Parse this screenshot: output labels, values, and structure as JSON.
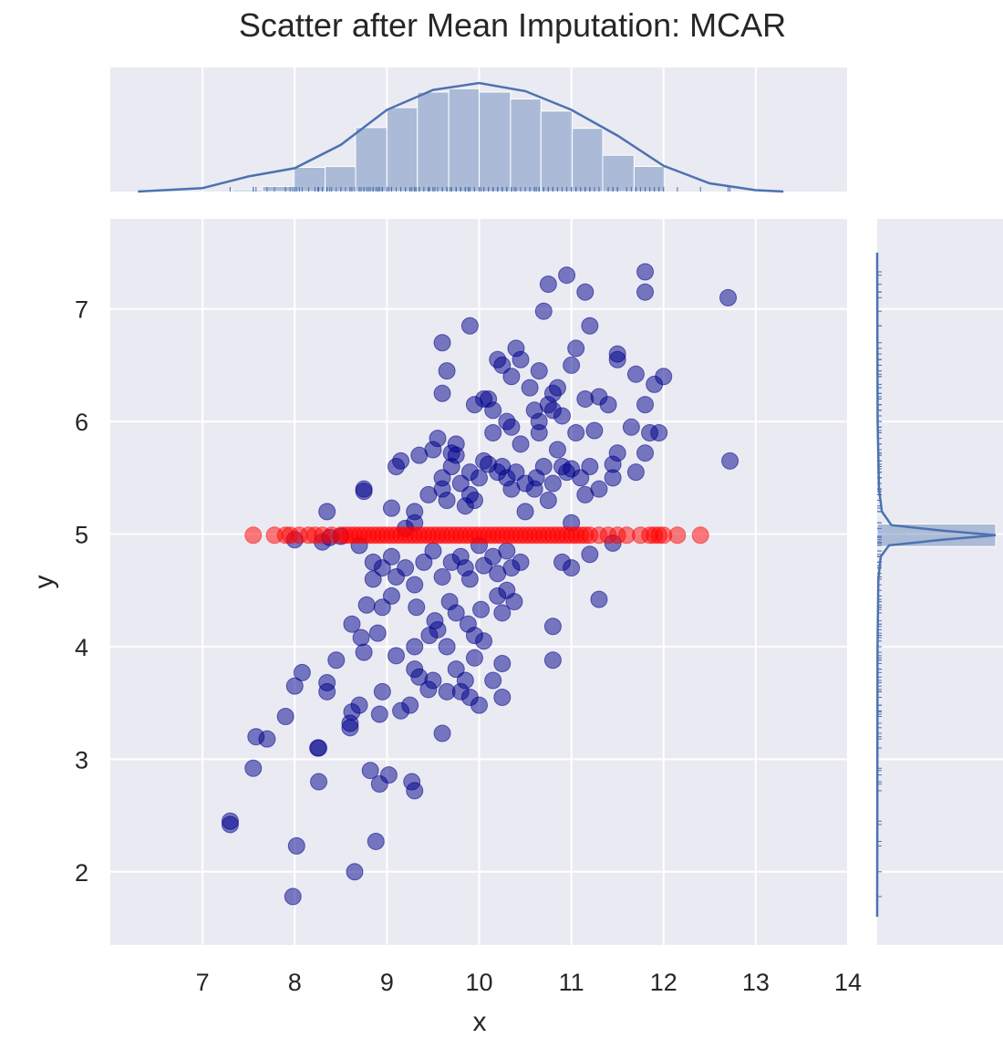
{
  "chart_data": {
    "type": "scatter",
    "title": "Scatter after Mean Imputation: MCAR",
    "xlabel": "x",
    "ylabel": "y",
    "xlim": [
      6.0,
      14.0
    ],
    "ylim": [
      1.35,
      7.8
    ],
    "xticks": [
      "7",
      "8",
      "9",
      "10",
      "11",
      "12",
      "13",
      "14"
    ],
    "yticks": [
      "2",
      "3",
      "4",
      "5",
      "6",
      "7"
    ],
    "grid": true,
    "colors": {
      "background": "#eaeaf2",
      "grid": "#ffffff",
      "observed": "#00008b",
      "imputed": "#ff0000",
      "marginal": "#4c72b0"
    },
    "series": [
      {
        "role": "observed",
        "points": [
          [
            7.3,
            2.42
          ],
          [
            7.3,
            2.45
          ],
          [
            7.55,
            2.92
          ],
          [
            7.58,
            3.2
          ],
          [
            7.7,
            3.18
          ],
          [
            7.9,
            3.38
          ],
          [
            8.0,
            3.65
          ],
          [
            8.02,
            2.23
          ],
          [
            7.98,
            1.78
          ],
          [
            8.08,
            3.77
          ],
          [
            8.25,
            3.1
          ],
          [
            8.26,
            3.1
          ],
          [
            8.26,
            2.8
          ],
          [
            8.35,
            3.68
          ],
          [
            8.35,
            3.6
          ],
          [
            8.45,
            3.88
          ],
          [
            8.6,
            3.28
          ],
          [
            8.6,
            3.32
          ],
          [
            8.62,
            3.42
          ],
          [
            8.62,
            4.2
          ],
          [
            8.65,
            2.0
          ],
          [
            8.7,
            3.48
          ],
          [
            8.72,
            4.08
          ],
          [
            8.75,
            3.95
          ],
          [
            8.78,
            4.37
          ],
          [
            8.82,
            2.9
          ],
          [
            8.88,
            2.27
          ],
          [
            8.92,
            2.78
          ],
          [
            8.92,
            3.4
          ],
          [
            8.95,
            4.35
          ],
          [
            8.9,
            4.12
          ],
          [
            8.95,
            3.6
          ],
          [
            9.02,
            2.86
          ],
          [
            9.05,
            4.45
          ],
          [
            9.1,
            3.92
          ],
          [
            9.15,
            3.43
          ],
          [
            9.25,
            3.48
          ],
          [
            9.27,
            2.8
          ],
          [
            9.3,
            2.72
          ],
          [
            9.3,
            3.8
          ],
          [
            9.3,
            4.0
          ],
          [
            9.32,
            4.35
          ],
          [
            9.35,
            3.73
          ],
          [
            9.45,
            3.62
          ],
          [
            9.46,
            4.1
          ],
          [
            9.5,
            3.7
          ],
          [
            9.52,
            4.23
          ],
          [
            9.55,
            4.15
          ],
          [
            9.6,
            3.23
          ],
          [
            9.65,
            3.6
          ],
          [
            9.65,
            4.0
          ],
          [
            9.68,
            4.4
          ],
          [
            9.75,
            3.8
          ],
          [
            9.75,
            4.3
          ],
          [
            9.8,
            3.6
          ],
          [
            9.85,
            3.7
          ],
          [
            9.88,
            4.2
          ],
          [
            9.9,
            3.55
          ],
          [
            9.95,
            4.1
          ],
          [
            9.95,
            3.9
          ],
          [
            10.0,
            3.48
          ],
          [
            10.02,
            4.33
          ],
          [
            10.05,
            4.05
          ],
          [
            10.15,
            3.7
          ],
          [
            10.2,
            4.45
          ],
          [
            10.25,
            3.85
          ],
          [
            10.25,
            4.3
          ],
          [
            10.25,
            3.55
          ],
          [
            10.3,
            4.5
          ],
          [
            10.38,
            4.4
          ],
          [
            10.8,
            4.18
          ],
          [
            10.8,
            3.88
          ],
          [
            11.3,
            4.42
          ],
          [
            8.0,
            4.95
          ],
          [
            8.3,
            4.93
          ],
          [
            8.38,
            4.97
          ],
          [
            8.5,
            4.98
          ],
          [
            8.7,
            4.9
          ],
          [
            8.85,
            4.75
          ],
          [
            8.85,
            4.6
          ],
          [
            8.95,
            4.7
          ],
          [
            9.05,
            4.8
          ],
          [
            9.1,
            4.62
          ],
          [
            9.2,
            4.7
          ],
          [
            9.3,
            4.55
          ],
          [
            9.4,
            4.75
          ],
          [
            9.5,
            4.85
          ],
          [
            9.6,
            4.62
          ],
          [
            9.7,
            4.75
          ],
          [
            9.8,
            4.8
          ],
          [
            9.85,
            4.7
          ],
          [
            9.9,
            4.6
          ],
          [
            10.0,
            4.9
          ],
          [
            10.05,
            4.72
          ],
          [
            10.15,
            4.8
          ],
          [
            10.2,
            4.65
          ],
          [
            10.3,
            4.85
          ],
          [
            10.35,
            4.7
          ],
          [
            10.45,
            4.75
          ],
          [
            10.9,
            4.75
          ],
          [
            11.0,
            4.7
          ],
          [
            11.2,
            4.82
          ],
          [
            11.45,
            4.92
          ],
          [
            8.35,
            5.2
          ],
          [
            8.75,
            5.38
          ],
          [
            8.75,
            5.4
          ],
          [
            9.05,
            5.23
          ],
          [
            9.1,
            5.6
          ],
          [
            9.15,
            5.65
          ],
          [
            9.2,
            5.05
          ],
          [
            9.3,
            5.2
          ],
          [
            9.3,
            5.1
          ],
          [
            9.35,
            5.7
          ],
          [
            9.45,
            5.35
          ],
          [
            9.5,
            5.75
          ],
          [
            9.55,
            5.85
          ],
          [
            9.6,
            5.5
          ],
          [
            9.6,
            5.4
          ],
          [
            9.65,
            5.3
          ],
          [
            9.7,
            5.72
          ],
          [
            9.7,
            5.6
          ],
          [
            9.75,
            5.7
          ],
          [
            9.75,
            5.8
          ],
          [
            9.8,
            5.45
          ],
          [
            9.85,
            5.25
          ],
          [
            9.9,
            5.55
          ],
          [
            9.9,
            5.35
          ],
          [
            9.95,
            5.3
          ],
          [
            10.0,
            5.5
          ],
          [
            10.05,
            5.65
          ],
          [
            10.1,
            5.62
          ],
          [
            10.2,
            5.55
          ],
          [
            10.25,
            5.6
          ],
          [
            10.3,
            5.5
          ],
          [
            10.35,
            5.4
          ],
          [
            10.4,
            5.55
          ],
          [
            10.45,
            5.8
          ],
          [
            10.5,
            5.45
          ],
          [
            10.5,
            5.2
          ],
          [
            10.6,
            5.4
          ],
          [
            10.62,
            5.5
          ],
          [
            10.65,
            5.9
          ],
          [
            10.7,
            5.6
          ],
          [
            10.75,
            5.3
          ],
          [
            10.8,
            5.45
          ],
          [
            10.85,
            5.75
          ],
          [
            10.9,
            5.6
          ],
          [
            10.95,
            5.55
          ],
          [
            11.0,
            5.1
          ],
          [
            11.0,
            5.58
          ],
          [
            11.1,
            5.5
          ],
          [
            11.15,
            5.35
          ],
          [
            11.2,
            5.6
          ],
          [
            11.3,
            5.4
          ],
          [
            11.45,
            5.5
          ],
          [
            11.45,
            5.62
          ],
          [
            11.5,
            5.72
          ],
          [
            11.7,
            5.55
          ],
          [
            11.8,
            5.72
          ],
          [
            9.6,
            6.25
          ],
          [
            9.6,
            6.7
          ],
          [
            9.65,
            6.45
          ],
          [
            9.9,
            6.85
          ],
          [
            9.95,
            6.15
          ],
          [
            10.05,
            6.2
          ],
          [
            10.1,
            6.2
          ],
          [
            10.15,
            6.1
          ],
          [
            10.15,
            5.9
          ],
          [
            10.2,
            6.55
          ],
          [
            10.25,
            6.5
          ],
          [
            10.3,
            6.0
          ],
          [
            10.35,
            5.95
          ],
          [
            10.35,
            6.4
          ],
          [
            10.4,
            6.65
          ],
          [
            10.45,
            6.55
          ],
          [
            10.55,
            6.3
          ],
          [
            10.6,
            6.1
          ],
          [
            10.65,
            6.45
          ],
          [
            10.65,
            6.0
          ],
          [
            10.7,
            6.98
          ],
          [
            10.75,
            6.15
          ],
          [
            10.75,
            7.22
          ],
          [
            10.8,
            6.25
          ],
          [
            10.8,
            6.1
          ],
          [
            10.85,
            6.3
          ],
          [
            10.9,
            6.05
          ],
          [
            10.95,
            7.3
          ],
          [
            11.0,
            6.5
          ],
          [
            11.05,
            6.65
          ],
          [
            11.05,
            5.9
          ],
          [
            11.15,
            6.2
          ],
          [
            11.15,
            7.15
          ],
          [
            11.2,
            6.85
          ],
          [
            11.25,
            5.92
          ],
          [
            11.3,
            6.22
          ],
          [
            11.4,
            6.15
          ],
          [
            11.5,
            6.55
          ],
          [
            11.5,
            6.6
          ],
          [
            11.65,
            5.95
          ],
          [
            11.7,
            6.42
          ],
          [
            11.8,
            6.15
          ],
          [
            11.8,
            7.33
          ],
          [
            11.8,
            7.15
          ],
          [
            11.85,
            5.9
          ],
          [
            11.9,
            6.33
          ],
          [
            11.95,
            5.9
          ],
          [
            12.0,
            6.4
          ],
          [
            12.7,
            7.1
          ],
          [
            12.72,
            5.65
          ]
        ]
      },
      {
        "role": "imputed",
        "y": 4.99,
        "x": [
          7.55,
          7.78,
          7.9,
          7.95,
          8.05,
          8.15,
          8.22,
          8.3,
          8.4,
          8.5,
          8.55,
          8.6,
          8.65,
          8.7,
          8.75,
          8.8,
          8.85,
          8.9,
          8.95,
          9.0,
          9.05,
          9.1,
          9.15,
          9.2,
          9.25,
          9.3,
          9.35,
          9.4,
          9.45,
          9.5,
          9.55,
          9.6,
          9.65,
          9.7,
          9.75,
          9.8,
          9.85,
          9.9,
          9.95,
          10.0,
          10.05,
          10.1,
          10.15,
          10.2,
          10.25,
          10.3,
          10.35,
          10.4,
          10.45,
          10.5,
          10.55,
          10.6,
          10.65,
          10.7,
          10.75,
          10.8,
          10.85,
          10.9,
          10.95,
          11.0,
          11.05,
          11.1,
          11.15,
          11.2,
          11.3,
          11.4,
          11.5,
          11.6,
          11.75,
          11.85,
          11.9,
          11.95,
          12.0,
          12.15,
          12.4
        ]
      }
    ],
    "x_hist": {
      "bin_edges": [
        7.32,
        7.65,
        7.99,
        8.33,
        8.66,
        9.0,
        9.33,
        9.67,
        10.0,
        10.34,
        10.67,
        11.01,
        11.34,
        11.68,
        12.01
      ],
      "heights": [
        0.015,
        0.044,
        0.207,
        0.214,
        0.548,
        0.719,
        0.852,
        0.881,
        0.852,
        0.793,
        0.689,
        0.541,
        0.311,
        0.215
      ],
      "kde_x": [
        6.3,
        7.0,
        7.5,
        8.0,
        8.5,
        9.0,
        9.5,
        10.0,
        10.5,
        11.0,
        11.5,
        12.0,
        12.5,
        13.0,
        13.3
      ],
      "kde_y": [
        0.0,
        0.03,
        0.13,
        0.2,
        0.4,
        0.7,
        0.87,
        0.93,
        0.86,
        0.7,
        0.48,
        0.22,
        0.07,
        0.012,
        0.0
      ]
    },
    "y_hist": {
      "kde_y": [
        1.6,
        4.0,
        4.6,
        4.8,
        4.9,
        4.95,
        4.99,
        5.03,
        5.08,
        5.2,
        5.4,
        6.0,
        7.5
      ],
      "kde_x": [
        0.0,
        0.003,
        0.01,
        0.03,
        0.1,
        0.55,
        1.0,
        0.55,
        0.12,
        0.04,
        0.015,
        0.004,
        0.0
      ],
      "center_bar": {
        "y0": 4.89,
        "y1": 5.09,
        "length": 1.0
      }
    }
  }
}
